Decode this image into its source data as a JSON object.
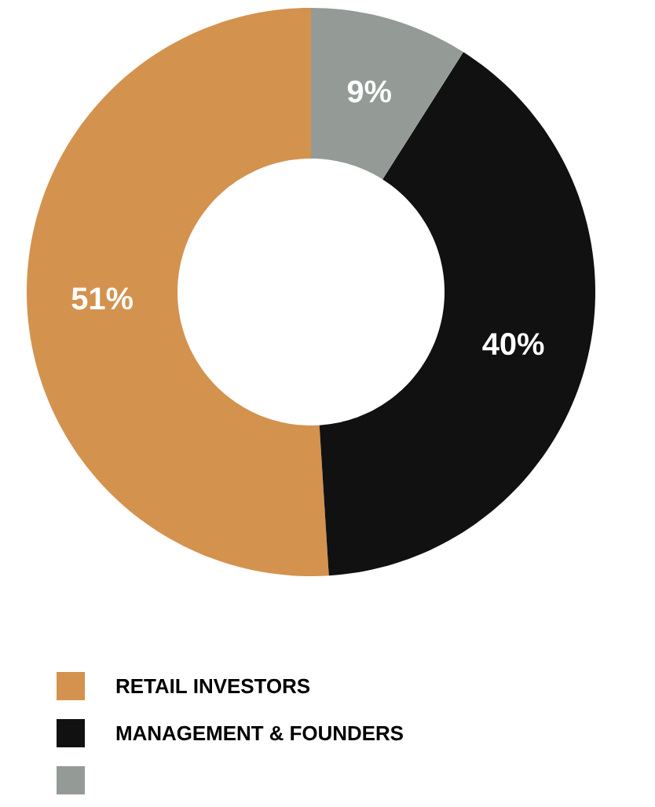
{
  "chart_data": {
    "type": "donut",
    "categories": [
      "RETAIL INVESTORS",
      "MANAGEMENT & FOUNDERS",
      null
    ],
    "values": [
      51,
      40,
      9
    ],
    "colors": [
      "#d4924f",
      "#111111",
      "#949b97"
    ],
    "value_labels": [
      "51%",
      "40%",
      "9%"
    ],
    "legend": "bottom"
  }
}
